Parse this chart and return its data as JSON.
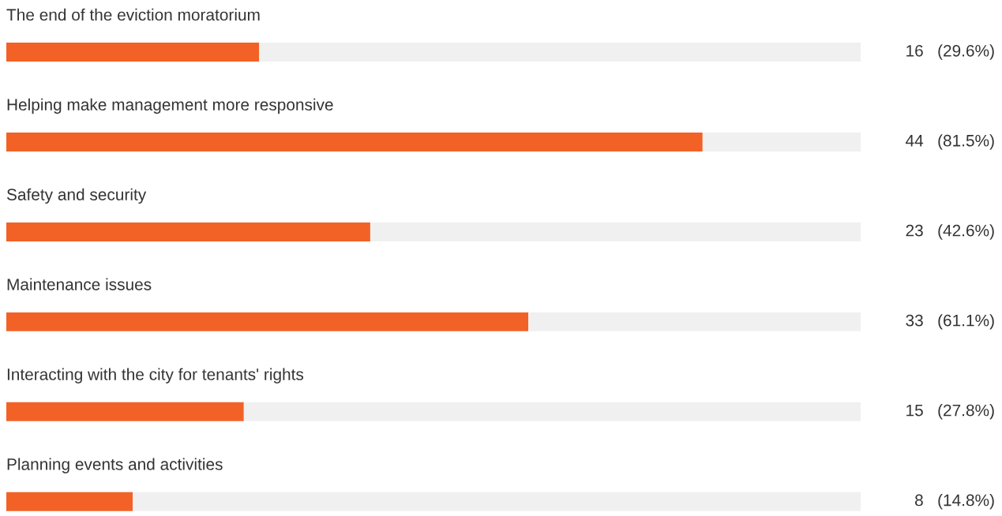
{
  "chart_data": {
    "type": "bar",
    "orientation": "horizontal",
    "stacked": true,
    "categories": [
      "The end of the eviction moratorium",
      "Helping make management more responsive",
      "Safety and security",
      "Maintenance issues",
      "Interacting with the city for tenants' rights",
      "Planning events and activities"
    ],
    "series": [
      {
        "color": "#f26227",
        "values": [
          29.6,
          81.5,
          42.6,
          61.1,
          27.8,
          14.8
        ],
        "value_labels": [
          "16   (29.6%)",
          "44   (81.5%)",
          "23   (42.6%)",
          "33   (61.1%)",
          "15   (27.8%)",
          "8   (14.8%)"
        ]
      },
      {
        "color": "#f0f0f0",
        "values": [
          70.4,
          18.5,
          57.4,
          38.9,
          72.2,
          85.2
        ]
      }
    ],
    "xlim": [
      0,
      100
    ],
    "tick_labels": false
  }
}
